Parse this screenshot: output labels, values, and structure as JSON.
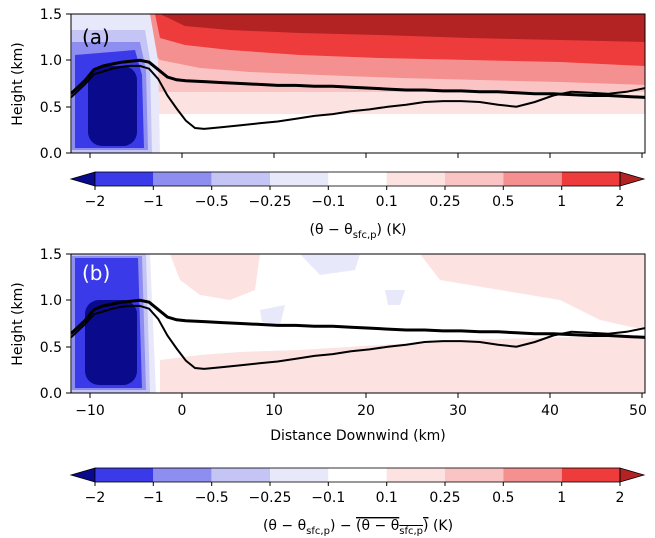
{
  "chart_data": [
    {
      "type": "heatmap",
      "panel_label": "(a)",
      "ylabel": "Height (km)",
      "xlim": [
        -12.5,
        50
      ],
      "ylim": [
        0,
        1.5
      ],
      "yticks": [
        "0.0",
        "0.5",
        "1.0",
        "1.5"
      ],
      "xticks_shown": false,
      "series": [
        {
          "x": [
            -12.5,
            -11,
            -10,
            -9,
            -8,
            -7,
            -6,
            -5,
            -4,
            -3,
            -2,
            -1,
            0,
            2,
            4,
            6,
            8,
            10,
            12,
            14,
            16,
            18,
            20,
            22,
            24,
            26,
            28,
            30,
            32,
            34,
            36,
            38,
            40,
            42,
            44,
            46,
            48,
            50
          ],
          "y": [
            0.64,
            0.78,
            0.9,
            0.94,
            0.96,
            0.98,
            0.99,
            1.0,
            0.98,
            0.9,
            0.82,
            0.79,
            0.78,
            0.77,
            0.76,
            0.75,
            0.74,
            0.73,
            0.73,
            0.72,
            0.72,
            0.71,
            0.7,
            0.69,
            0.68,
            0.68,
            0.67,
            0.67,
            0.66,
            0.66,
            0.65,
            0.64,
            0.64,
            0.63,
            0.62,
            0.62,
            0.61,
            0.6
          ]
        },
        {
          "x": [
            -12.5,
            -11,
            -10,
            -9,
            -8,
            -7,
            -6,
            -5,
            -4,
            -3,
            -2,
            -1,
            0,
            1,
            2,
            4,
            6,
            8,
            10,
            12,
            14,
            16,
            18,
            20,
            22,
            24,
            26,
            28,
            30,
            32,
            34,
            36,
            38,
            40,
            42,
            44,
            46,
            48,
            50
          ],
          "y": [
            0.6,
            0.74,
            0.85,
            0.88,
            0.91,
            0.93,
            0.94,
            0.94,
            0.91,
            0.8,
            0.62,
            0.48,
            0.35,
            0.27,
            0.26,
            0.28,
            0.3,
            0.32,
            0.34,
            0.37,
            0.4,
            0.42,
            0.45,
            0.47,
            0.5,
            0.52,
            0.55,
            0.56,
            0.56,
            0.55,
            0.52,
            0.5,
            0.55,
            0.62,
            0.66,
            0.65,
            0.64,
            0.66,
            0.7
          ]
        }
      ]
    },
    {
      "type": "heatmap",
      "panel_label": "(b)",
      "ylabel": "Height (km)",
      "xlabel": "Distance Downwind (km)",
      "xlim": [
        -12.5,
        50
      ],
      "ylim": [
        0,
        1.5
      ],
      "yticks": [
        "0.0",
        "0.5",
        "1.0",
        "1.5"
      ],
      "xticks": [
        "−10",
        "0",
        "10",
        "20",
        "30",
        "40",
        "50"
      ],
      "series": [
        {
          "x": [
            -12.5,
            -11,
            -10,
            -9,
            -8,
            -7,
            -6,
            -5,
            -4,
            -3,
            -2,
            -1,
            0,
            2,
            4,
            6,
            8,
            10,
            12,
            14,
            16,
            18,
            20,
            22,
            24,
            26,
            28,
            30,
            32,
            34,
            36,
            38,
            40,
            42,
            44,
            46,
            48,
            50
          ],
          "y": [
            0.64,
            0.78,
            0.9,
            0.94,
            0.96,
            0.98,
            0.99,
            1.0,
            0.98,
            0.9,
            0.82,
            0.79,
            0.78,
            0.77,
            0.76,
            0.75,
            0.74,
            0.73,
            0.73,
            0.72,
            0.72,
            0.71,
            0.7,
            0.69,
            0.68,
            0.68,
            0.67,
            0.67,
            0.66,
            0.66,
            0.65,
            0.64,
            0.64,
            0.63,
            0.62,
            0.62,
            0.61,
            0.6
          ]
        },
        {
          "x": [
            -12.5,
            -11,
            -10,
            -9,
            -8,
            -7,
            -6,
            -5,
            -4,
            -3,
            -2,
            -1,
            0,
            1,
            2,
            4,
            6,
            8,
            10,
            12,
            14,
            16,
            18,
            20,
            22,
            24,
            26,
            28,
            30,
            32,
            34,
            36,
            38,
            40,
            42,
            44,
            46,
            48,
            50
          ],
          "y": [
            0.6,
            0.74,
            0.85,
            0.88,
            0.91,
            0.93,
            0.94,
            0.94,
            0.91,
            0.8,
            0.62,
            0.48,
            0.35,
            0.27,
            0.26,
            0.28,
            0.3,
            0.32,
            0.34,
            0.37,
            0.4,
            0.42,
            0.45,
            0.47,
            0.5,
            0.52,
            0.55,
            0.56,
            0.56,
            0.55,
            0.52,
            0.5,
            0.55,
            0.62,
            0.66,
            0.65,
            0.64,
            0.66,
            0.7
          ]
        }
      ]
    }
  ],
  "colorbars": [
    {
      "ticks": [
        "−2",
        "−1",
        "−0.5",
        "−0.25",
        "−0.1",
        "0.1",
        "0.25",
        "0.5",
        "1",
        "2"
      ],
      "colors": [
        "#0a0a8c",
        "#3a3ae8",
        "#8e8ef0",
        "#c4c4f5",
        "#e8e8fb",
        "#ffffff",
        "#fde2e2",
        "#fbc4c4",
        "#f59090",
        "#ee3b3b",
        "#b32323"
      ],
      "label_before": "(θ − θ",
      "label_sub": "sfc,p",
      "label_after": ") (K)"
    },
    {
      "ticks": [
        "−2",
        "−1",
        "−0.5",
        "−0.25",
        "−0.1",
        "0.1",
        "0.25",
        "0.5",
        "1",
        "2"
      ],
      "colors": [
        "#0a0a8c",
        "#3a3ae8",
        "#8e8ef0",
        "#c4c4f5",
        "#e8e8fb",
        "#ffffff",
        "#fde2e2",
        "#fbc4c4",
        "#f59090",
        "#ee3b3b",
        "#b32323"
      ],
      "label_before": "(θ − θ",
      "label_sub": "sfc,p",
      "label_mid": ") − ",
      "label_over_before": "(θ − θ",
      "label_over_after": ")",
      "label_after": " (K)"
    }
  ]
}
